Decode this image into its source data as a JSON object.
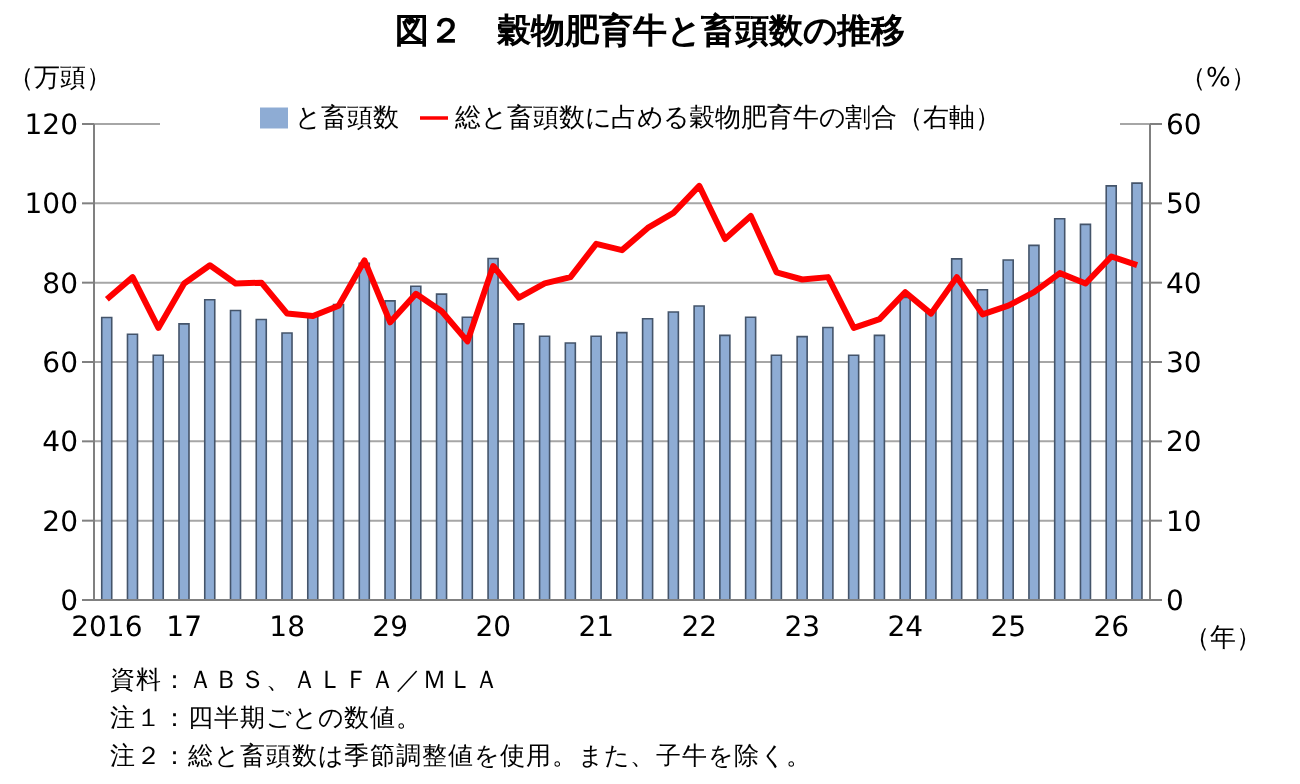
{
  "chart_data": {
    "type": "bar",
    "title": "図２　穀物肥育牛と畜頭数の推移",
    "ylabel": "（万頭）",
    "y2label": "（%）",
    "xlabel": "（年）",
    "categories": [
      "2016",
      null,
      null,
      "17",
      null,
      null,
      null,
      "18",
      null,
      null,
      null,
      "29",
      null,
      null,
      null,
      "20",
      null,
      null,
      null,
      "21",
      null,
      null,
      null,
      "22",
      null,
      null,
      null,
      "23",
      null,
      null,
      null,
      "24",
      null,
      null,
      null,
      "25",
      null,
      null,
      null,
      "26",
      null
    ],
    "series": [
      {
        "name": "と畜頭数",
        "color": "#8eacd4",
        "values": [
          71.2,
          67,
          61.7,
          69.6,
          75.7,
          73,
          70.7,
          67.3,
          71.7,
          74.5,
          84.9,
          75.4,
          79.1,
          77.1,
          71.3,
          86.1,
          69.6,
          66.5,
          64.8,
          66.5,
          67.4,
          70.9,
          72.6,
          74.1,
          66.7,
          71.3,
          61.7,
          66.4,
          68.7,
          61.7,
          66.7,
          76.3,
          73,
          86,
          78.2,
          85.7,
          89.4,
          96.1,
          94.7,
          104.4,
          105.1
        ]
      },
      {
        "name": "総と畜頭数に占める穀物肥育牛の割合（右軸）",
        "type": "line",
        "axis": "y2",
        "color": "#ff0000",
        "values": [
          37.9,
          40.7,
          34.3,
          39.9,
          42.2,
          39.9,
          40,
          36.1,
          35.8,
          37.1,
          42.8,
          35,
          38.6,
          36.4,
          32.6,
          42.1,
          38.1,
          39.9,
          40.7,
          44.9,
          44.1,
          46.9,
          48.8,
          52.2,
          45.5,
          48.4,
          41.3,
          40.4,
          40.7,
          34.3,
          35.4,
          38.8,
          36.1,
          40.7,
          36,
          37.1,
          38.8,
          41.2,
          39.9,
          43.3,
          42.2
        ]
      }
    ],
    "ylim": [
      0,
      120
    ],
    "yticks": [
      0,
      20,
      40,
      60,
      80,
      100,
      120
    ],
    "y2lim": [
      0,
      60
    ],
    "y2ticks": [
      0,
      10,
      20,
      30,
      40,
      50,
      60
    ],
    "grid": "y",
    "legend": "top",
    "marker": "none",
    "annotations": [
      "資料：ＡＢＳ、ＡＬＦＡ／ＭＬＡ",
      "注１：四半期ごとの数値。",
      "注２：総と畜頭数は季節調整値を使用。また、子牛を除く。"
    ]
  }
}
